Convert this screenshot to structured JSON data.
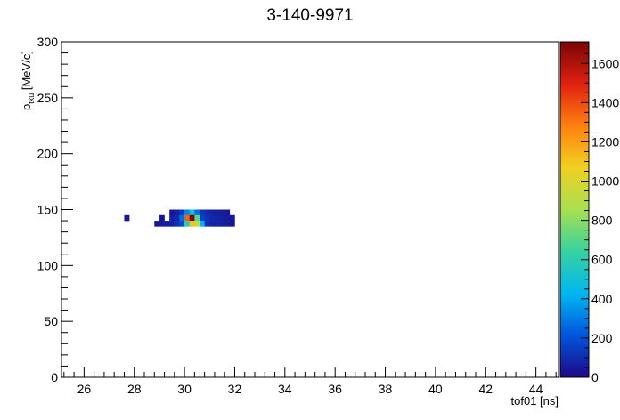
{
  "chart_data": {
    "type": "heatmap",
    "title": "3-140-9971",
    "xlabel": "tof01 [ns]",
    "ylabel_main": "p",
    "ylabel_sub": "tku",
    "ylabel_unit": " [MeV/c]",
    "xlim": [
      25.1,
      44.9
    ],
    "ylim": [
      0,
      300
    ],
    "zlim": [
      0,
      1710
    ],
    "x_ticks": [
      26,
      28,
      30,
      32,
      34,
      36,
      38,
      40,
      42,
      44
    ],
    "y_ticks": [
      0,
      50,
      100,
      150,
      200,
      250,
      300
    ],
    "z_ticks": [
      0,
      200,
      400,
      600,
      800,
      1000,
      1200,
      1400,
      1600
    ],
    "grid": false,
    "colorbar": "right",
    "colormap": [
      "#1e0a87",
      "#0055dd",
      "#00b7f0",
      "#38d2a0",
      "#a8e050",
      "#f0d020",
      "#ff8010",
      "#e02010",
      "#7a0505"
    ],
    "bin_size": {
      "x": 0.2,
      "y": 5
    },
    "bins": [
      {
        "x": 27.6,
        "y": 140,
        "z": 40
      },
      {
        "x": 28.8,
        "y": 135,
        "z": 30
      },
      {
        "x": 29.0,
        "y": 140,
        "z": 40
      },
      {
        "x": 29.0,
        "y": 135,
        "z": 50
      },
      {
        "x": 29.2,
        "y": 135,
        "z": 60
      },
      {
        "x": 29.4,
        "y": 145,
        "z": 40
      },
      {
        "x": 29.4,
        "y": 140,
        "z": 60
      },
      {
        "x": 29.4,
        "y": 135,
        "z": 70
      },
      {
        "x": 29.6,
        "y": 145,
        "z": 60
      },
      {
        "x": 29.6,
        "y": 140,
        "z": 90
      },
      {
        "x": 29.6,
        "y": 135,
        "z": 110
      },
      {
        "x": 29.8,
        "y": 145,
        "z": 140
      },
      {
        "x": 29.8,
        "y": 140,
        "z": 260
      },
      {
        "x": 29.8,
        "y": 135,
        "z": 180
      },
      {
        "x": 30.0,
        "y": 145,
        "z": 320
      },
      {
        "x": 30.0,
        "y": 140,
        "z": 1350
      },
      {
        "x": 30.0,
        "y": 135,
        "z": 600
      },
      {
        "x": 30.2,
        "y": 145,
        "z": 500
      },
      {
        "x": 30.2,
        "y": 140,
        "z": 1710
      },
      {
        "x": 30.2,
        "y": 135,
        "z": 1100
      },
      {
        "x": 30.4,
        "y": 145,
        "z": 260
      },
      {
        "x": 30.4,
        "y": 140,
        "z": 700
      },
      {
        "x": 30.4,
        "y": 135,
        "z": 950
      },
      {
        "x": 30.6,
        "y": 145,
        "z": 120
      },
      {
        "x": 30.6,
        "y": 140,
        "z": 160
      },
      {
        "x": 30.6,
        "y": 135,
        "z": 420
      },
      {
        "x": 30.8,
        "y": 145,
        "z": 90
      },
      {
        "x": 30.8,
        "y": 140,
        "z": 120
      },
      {
        "x": 30.8,
        "y": 135,
        "z": 110
      },
      {
        "x": 31.0,
        "y": 145,
        "z": 70
      },
      {
        "x": 31.0,
        "y": 140,
        "z": 90
      },
      {
        "x": 31.0,
        "y": 135,
        "z": 80
      },
      {
        "x": 31.2,
        "y": 145,
        "z": 60
      },
      {
        "x": 31.2,
        "y": 140,
        "z": 70
      },
      {
        "x": 31.2,
        "y": 135,
        "z": 70
      },
      {
        "x": 31.4,
        "y": 145,
        "z": 50
      },
      {
        "x": 31.4,
        "y": 140,
        "z": 60
      },
      {
        "x": 31.4,
        "y": 135,
        "z": 60
      },
      {
        "x": 31.6,
        "y": 145,
        "z": 40
      },
      {
        "x": 31.6,
        "y": 140,
        "z": 50
      },
      {
        "x": 31.6,
        "y": 135,
        "z": 50
      },
      {
        "x": 31.8,
        "y": 140,
        "z": 40
      },
      {
        "x": 31.8,
        "y": 135,
        "z": 40
      }
    ]
  }
}
